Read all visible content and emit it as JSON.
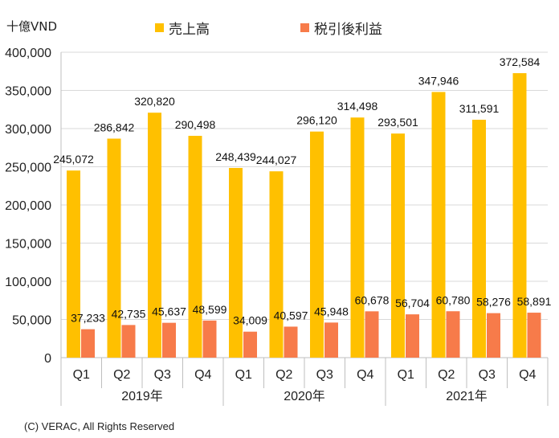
{
  "colors": {
    "sales": "#FFC000",
    "profit": "#F77B4A",
    "grid": "#d9d9d9",
    "axis": "#bfbfbf"
  },
  "chart_data": {
    "type": "bar",
    "unit_label": "十億VND",
    "ylim": [
      0,
      400000
    ],
    "yticks": [
      "0",
      "50,000",
      "100,000",
      "150,000",
      "200,000",
      "250,000",
      "300,000",
      "350,000",
      "400,000"
    ],
    "categories": [
      "Q1",
      "Q2",
      "Q3",
      "Q4",
      "Q1",
      "Q2",
      "Q3",
      "Q4",
      "Q1",
      "Q2",
      "Q3",
      "Q4"
    ],
    "groups": [
      "2019年",
      "2020年",
      "2021年"
    ],
    "series": [
      {
        "name": "売上高",
        "values": [
          245072,
          286842,
          320820,
          290498,
          248439,
          244027,
          296120,
          314498,
          293501,
          347946,
          311591,
          372584
        ],
        "labels": [
          "245,072",
          "286,842",
          "320,820",
          "290,498",
          "248,439",
          "244,027",
          "296,120",
          "314,498",
          "293,501",
          "347,946",
          "311,591",
          "372,584"
        ]
      },
      {
        "name": "税引後利益",
        "values": [
          37233,
          42735,
          45637,
          48599,
          34009,
          40597,
          45948,
          60678,
          56704,
          60780,
          58276,
          58891
        ],
        "labels": [
          "37,233",
          "42,735",
          "45,637",
          "48,599",
          "34,009",
          "40,597",
          "45,948",
          "60,678",
          "56,704",
          "60,780",
          "58,276",
          "58,891"
        ]
      }
    ],
    "grid": true,
    "legend": "top"
  },
  "copyright": "(C) VERAC, All Rights Reserved"
}
